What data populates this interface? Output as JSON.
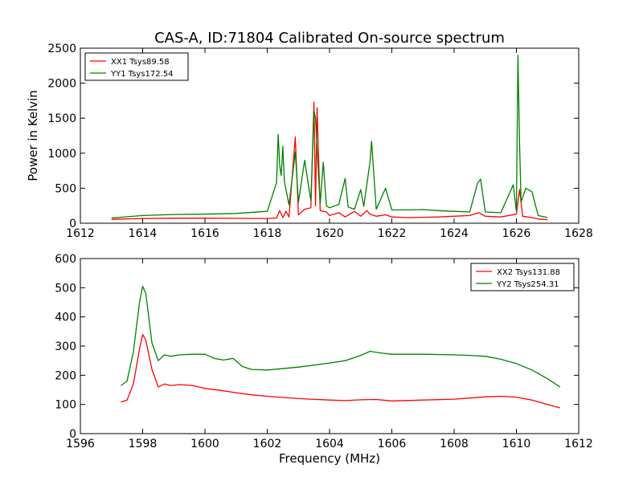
{
  "chart_data": [
    {
      "type": "line",
      "title": "CAS-A, ID:71804 Calibrated On-source spectrum",
      "xlabel": "",
      "ylabel": "Power in Kelvin",
      "xlim": [
        1612,
        1628
      ],
      "ylim": [
        0,
        2500
      ],
      "xticks": [
        1612,
        1614,
        1616,
        1618,
        1620,
        1622,
        1624,
        1626,
        1628
      ],
      "yticks": [
        0,
        500,
        1000,
        1500,
        2000,
        2500
      ],
      "legend": "top-left",
      "series": [
        {
          "name": "XX1 Tsys89.58",
          "color": "#ff0000",
          "x": [
            1613,
            1614,
            1615,
            1616,
            1617,
            1618.0,
            1618.3,
            1618.4,
            1618.5,
            1618.6,
            1618.7,
            1618.9,
            1619.0,
            1619.2,
            1619.4,
            1619.5,
            1619.55,
            1619.6,
            1619.7,
            1619.9,
            1620.0,
            1620.3,
            1620.5,
            1620.8,
            1621.0,
            1621.2,
            1621.3,
            1621.5,
            1621.8,
            1622.0,
            1622.5,
            1623.0,
            1623.5,
            1624.0,
            1624.5,
            1624.8,
            1625.0,
            1625.5,
            1626.0,
            1626.1,
            1626.2,
            1626.5,
            1626.7,
            1627.0
          ],
          "y": [
            55,
            68,
            72,
            72,
            70,
            68,
            75,
            180,
            80,
            170,
            90,
            1230,
            120,
            200,
            220,
            1730,
            250,
            1650,
            180,
            160,
            110,
            150,
            90,
            170,
            100,
            180,
            130,
            100,
            120,
            90,
            80,
            85,
            90,
            100,
            110,
            150,
            100,
            90,
            130,
            480,
            100,
            80,
            60,
            50
          ]
        },
        {
          "name": "YY1 Tsys172.54",
          "color": "#008000",
          "x": [
            1613,
            1614,
            1615,
            1616,
            1617,
            1618.0,
            1618.3,
            1618.35,
            1618.4,
            1618.45,
            1618.5,
            1618.55,
            1618.7,
            1618.9,
            1619.0,
            1619.2,
            1619.4,
            1619.5,
            1619.55,
            1619.6,
            1619.7,
            1619.8,
            1619.9,
            1620.0,
            1620.3,
            1620.5,
            1620.6,
            1620.8,
            1621.0,
            1621.1,
            1621.2,
            1621.3,
            1621.35,
            1621.5,
            1621.8,
            1622.0,
            1622.5,
            1623.0,
            1623.5,
            1624.0,
            1624.5,
            1624.75,
            1624.85,
            1625.0,
            1625.5,
            1625.9,
            1626.0,
            1626.05,
            1626.1,
            1626.15,
            1626.3,
            1626.5,
            1626.7,
            1627.0
          ],
          "y": [
            75,
            110,
            125,
            130,
            140,
            170,
            580,
            1270,
            820,
            680,
            1100,
            600,
            260,
            1020,
            300,
            900,
            320,
            1610,
            1500,
            1040,
            280,
            870,
            250,
            220,
            270,
            640,
            230,
            200,
            480,
            240,
            560,
            880,
            1170,
            200,
            500,
            190,
            190,
            195,
            180,
            170,
            160,
            570,
            630,
            160,
            150,
            550,
            170,
            2400,
            1150,
            300,
            500,
            450,
            110,
            80
          ]
        }
      ]
    },
    {
      "type": "line",
      "title": "",
      "xlabel": "Frequency (MHz)",
      "ylabel": "",
      "xlim": [
        1596,
        1612
      ],
      "ylim": [
        0,
        600
      ],
      "xticks": [
        1596,
        1598,
        1600,
        1602,
        1604,
        1606,
        1608,
        1610,
        1612
      ],
      "yticks": [
        0,
        100,
        200,
        300,
        400,
        500,
        600
      ],
      "legend": "top-right",
      "series": [
        {
          "name": "XX2 Tsys131.88",
          "color": "#ff0000",
          "x": [
            1597.3,
            1597.5,
            1597.7,
            1597.9,
            1598.0,
            1598.1,
            1598.3,
            1598.5,
            1598.7,
            1598.9,
            1599.2,
            1599.6,
            1600,
            1600.5,
            1601,
            1601.5,
            1602,
            1603,
            1604,
            1604.5,
            1605,
            1605.5,
            1606,
            1607,
            1608,
            1608.5,
            1609,
            1609.5,
            1610,
            1610.5,
            1611,
            1611.4
          ],
          "y": [
            108,
            115,
            170,
            290,
            340,
            320,
            220,
            160,
            170,
            165,
            168,
            165,
            155,
            148,
            140,
            133,
            128,
            120,
            115,
            113,
            116,
            117,
            112,
            115,
            118,
            122,
            126,
            128,
            125,
            115,
            100,
            88
          ]
        },
        {
          "name": "YY2 Tsys254.31",
          "color": "#008000",
          "x": [
            1597.3,
            1597.5,
            1597.7,
            1597.9,
            1598.0,
            1598.1,
            1598.3,
            1598.5,
            1598.7,
            1598.9,
            1599.2,
            1599.6,
            1600,
            1600.3,
            1600.6,
            1600.9,
            1601.2,
            1601.5,
            1602,
            1603,
            1604,
            1604.5,
            1605,
            1605.3,
            1605.6,
            1606,
            1607,
            1608,
            1608.5,
            1609,
            1609.5,
            1610,
            1610.5,
            1611,
            1611.4
          ],
          "y": [
            165,
            180,
            280,
            450,
            505,
            480,
            310,
            250,
            270,
            265,
            270,
            272,
            272,
            258,
            252,
            258,
            230,
            220,
            218,
            228,
            242,
            250,
            268,
            282,
            277,
            272,
            272,
            270,
            268,
            265,
            255,
            240,
            218,
            188,
            160
          ]
        }
      ]
    }
  ]
}
